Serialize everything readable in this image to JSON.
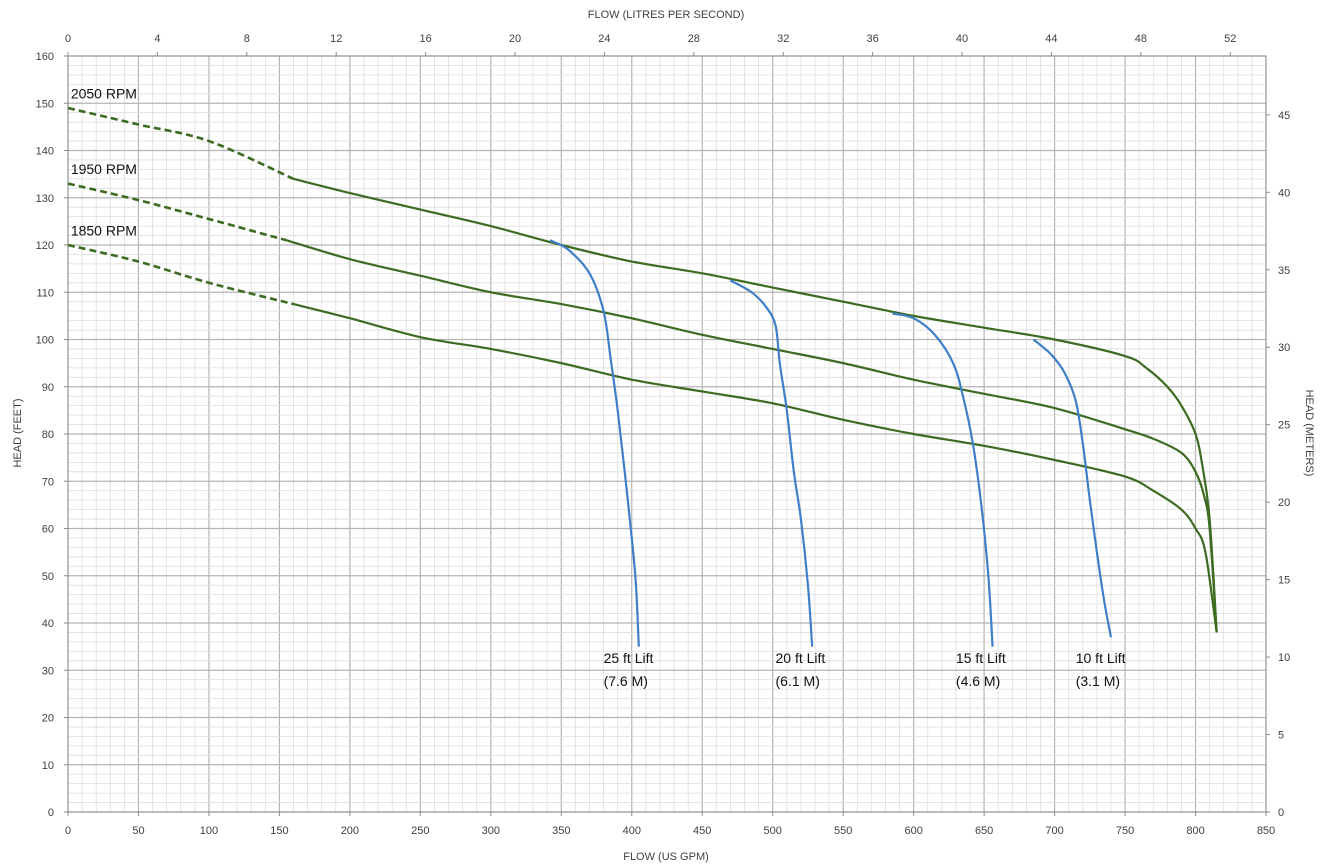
{
  "chart_data": {
    "type": "line",
    "xlabel": "FLOW (US GPM)",
    "x2label": "FLOW (LITRES PER SECOND)",
    "ylabel": "HEAD (FEET)",
    "y2label": "HEAD (METERS)",
    "xlim": [
      0,
      850
    ],
    "ylim": [
      0,
      160
    ],
    "x2lim": [
      0,
      53.6
    ],
    "y2lim": [
      0,
      48.8
    ],
    "x_ticks": [
      0,
      50,
      100,
      150,
      200,
      250,
      300,
      350,
      400,
      450,
      500,
      550,
      600,
      650,
      700,
      750,
      800,
      850
    ],
    "x_ticks_labels": [
      "0",
      "50",
      "100",
      "150",
      "200",
      "250",
      "300",
      "350",
      "400",
      "450",
      "500",
      "550",
      "600",
      "650",
      "700",
      "750",
      "800",
      "850"
    ],
    "y_ticks": [
      0,
      10,
      20,
      30,
      40,
      50,
      60,
      70,
      80,
      90,
      100,
      110,
      120,
      130,
      140,
      150,
      160
    ],
    "y_ticks_labels": [
      "0",
      "10",
      "20",
      "30",
      "40",
      "50",
      "60",
      "70",
      "80",
      "90",
      "100",
      "110",
      "120",
      "130",
      "140",
      "150",
      "160"
    ],
    "x2_ticks": [
      0,
      4,
      8,
      12,
      16,
      20,
      24,
      28,
      32,
      36,
      40,
      44,
      48,
      52
    ],
    "x2_ticks_labels": [
      "0",
      "4",
      "8",
      "12",
      "16",
      "20",
      "24",
      "28",
      "32",
      "36",
      "40",
      "44",
      "48",
      "52"
    ],
    "y2_ticks": [
      0,
      5,
      10,
      15,
      20,
      25,
      30,
      35,
      40,
      45
    ],
    "y2_ticks_labels": [
      "0",
      "5",
      "10",
      "15",
      "20",
      "25",
      "30",
      "35",
      "40",
      "45"
    ],
    "grid": true,
    "series": [
      {
        "name": "2050 RPM",
        "color": "#3d6b21",
        "dashed_until_x": 160,
        "points": [
          [
            0,
            149
          ],
          [
            50,
            145.5
          ],
          [
            100,
            142
          ],
          [
            160,
            134
          ],
          [
            200,
            131
          ],
          [
            250,
            127.5
          ],
          [
            300,
            124
          ],
          [
            350,
            120
          ],
          [
            400,
            116.5
          ],
          [
            450,
            114
          ],
          [
            500,
            111
          ],
          [
            550,
            108
          ],
          [
            600,
            105
          ],
          [
            650,
            102.5
          ],
          [
            700,
            100
          ],
          [
            750,
            96.5
          ],
          [
            765,
            94
          ],
          [
            780,
            90
          ],
          [
            790,
            86
          ],
          [
            800,
            80
          ],
          [
            805,
            73
          ],
          [
            810,
            62
          ],
          [
            815,
            38
          ]
        ]
      },
      {
        "name": "1950 RPM",
        "color": "#3d6b21",
        "dashed_until_x": 155,
        "points": [
          [
            0,
            133
          ],
          [
            50,
            129.5
          ],
          [
            100,
            125.5
          ],
          [
            155,
            121
          ],
          [
            200,
            117
          ],
          [
            250,
            113.5
          ],
          [
            300,
            110
          ],
          [
            350,
            107.5
          ],
          [
            400,
            104.5
          ],
          [
            450,
            101
          ],
          [
            500,
            98
          ],
          [
            550,
            95
          ],
          [
            600,
            91.5
          ],
          [
            650,
            88.5
          ],
          [
            700,
            85.5
          ],
          [
            750,
            81
          ],
          [
            770,
            79
          ],
          [
            790,
            76
          ],
          [
            800,
            72
          ],
          [
            806,
            67
          ],
          [
            810,
            60
          ],
          [
            815,
            38
          ]
        ]
      },
      {
        "name": "1850 RPM",
        "color": "#3d6b21",
        "dashed_until_x": 160,
        "points": [
          [
            0,
            120
          ],
          [
            50,
            116.5
          ],
          [
            100,
            112
          ],
          [
            160,
            107.5
          ],
          [
            200,
            104.5
          ],
          [
            250,
            100.5
          ],
          [
            300,
            98
          ],
          [
            350,
            95
          ],
          [
            400,
            91.5
          ],
          [
            450,
            89
          ],
          [
            500,
            86.5
          ],
          [
            550,
            83
          ],
          [
            600,
            80
          ],
          [
            650,
            77.5
          ],
          [
            700,
            74.5
          ],
          [
            750,
            71
          ],
          [
            770,
            68
          ],
          [
            790,
            64
          ],
          [
            800,
            60
          ],
          [
            807,
            55
          ],
          [
            815,
            38
          ]
        ]
      },
      {
        "name": "25 ft Lift",
        "color": "#3f7fc8",
        "points": [
          [
            342,
            121
          ],
          [
            355,
            119
          ],
          [
            370,
            114
          ],
          [
            380,
            106
          ],
          [
            385,
            96
          ],
          [
            390,
            85
          ],
          [
            395,
            72
          ],
          [
            400,
            58
          ],
          [
            403,
            48
          ],
          [
            405,
            35
          ]
        ]
      },
      {
        "name": "20 ft Lift",
        "color": "#3f7fc8",
        "points": [
          [
            470,
            112.5
          ],
          [
            485,
            110
          ],
          [
            495,
            107
          ],
          [
            502,
            103
          ],
          [
            505,
            95
          ],
          [
            510,
            85
          ],
          [
            515,
            72
          ],
          [
            520,
            62
          ],
          [
            525,
            48
          ],
          [
            528,
            35
          ]
        ]
      },
      {
        "name": "15 ft Lift",
        "color": "#3f7fc8",
        "points": [
          [
            585,
            105.5
          ],
          [
            600,
            104.5
          ],
          [
            615,
            101
          ],
          [
            628,
            95
          ],
          [
            635,
            88
          ],
          [
            642,
            78
          ],
          [
            648,
            65
          ],
          [
            653,
            50
          ],
          [
            656,
            35
          ]
        ]
      },
      {
        "name": "10 ft Lift",
        "color": "#3f7fc8",
        "points": [
          [
            685,
            100
          ],
          [
            697,
            97
          ],
          [
            707,
            93
          ],
          [
            715,
            87
          ],
          [
            720,
            78
          ],
          [
            725,
            66
          ],
          [
            730,
            55
          ],
          [
            735,
            45
          ],
          [
            740,
            37
          ]
        ]
      }
    ],
    "annotations": [
      {
        "text": "2050 RPM",
        "x": 2,
        "y": 151
      },
      {
        "text": "1950 RPM",
        "x": 2,
        "y": 135
      },
      {
        "text": "1850 RPM",
        "x": 2,
        "y": 122
      },
      {
        "lines": [
          "25 ft Lift",
          "(7.6 M)"
        ],
        "x": 380,
        "y": 31.5
      },
      {
        "lines": [
          "20 ft Lift",
          "(6.1 M)"
        ],
        "x": 502,
        "y": 31.5
      },
      {
        "lines": [
          "15 ft Lift",
          "(4.6 M)"
        ],
        "x": 630,
        "y": 31.5
      },
      {
        "lines": [
          "10 ft Lift",
          "(3.1 M)"
        ],
        "x": 715,
        "y": 31.5
      }
    ]
  }
}
